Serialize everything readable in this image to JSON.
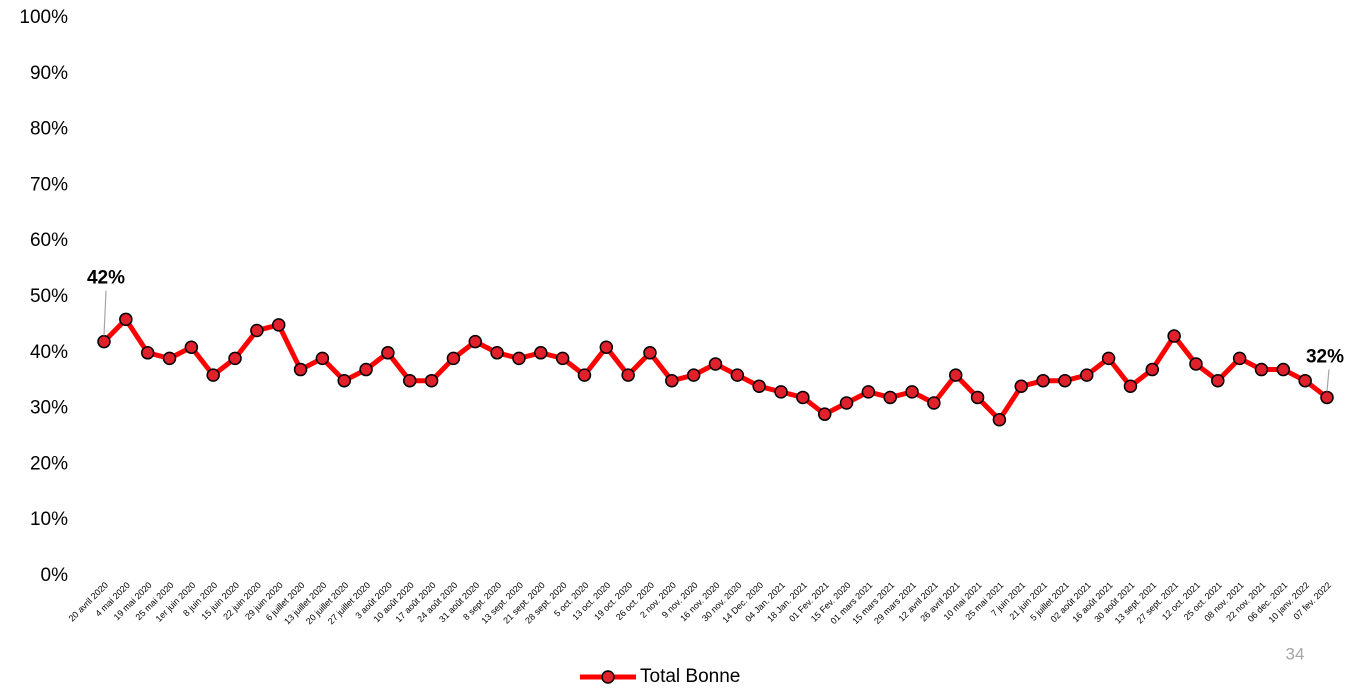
{
  "chart_data": {
    "type": "line",
    "categories": [
      "20 avril 2020",
      "4 mai 2020",
      "19 mai 2020",
      "25 mai 2020",
      "1er juin 2020",
      "8 juin 2020",
      "15 juin 2020",
      "22 juin 2020",
      "29 juin 2020",
      "6 juillet 2020",
      "13 juillet 2020",
      "20 juillet 2020",
      "27 juillet 2020",
      "3 août 2020",
      "10 août 2020",
      "17 août 2020",
      "24 août 2020",
      "31 août 2020",
      "8 sept. 2020",
      "13 sept. 2020",
      "21 sept. 2020",
      "28 sept. 2020",
      "5 oct. 2020",
      "13 oct. 2020",
      "19 oct. 2020",
      "26 oct. 2020",
      "2 nov. 2020",
      "9 nov. 2020",
      "16 nov. 2020",
      "30 nov. 2020",
      "14 Dec. 2020",
      "04 Jan. 2021",
      "18 Jan. 2021",
      "01 Fev. 2021",
      "15 Fev. 2020",
      "01 mars 2021",
      "15 mars 2021",
      "29 mars 2021",
      "12 avril 2021",
      "26 avril 2021",
      "10 mai 2021",
      "25 mai 2021",
      "7 juin 2021",
      "21 juin 2021",
      "5 juillet 2021",
      "02 août 2021",
      "16 août 2021",
      "30 août 2021",
      "13 sept. 2021",
      "27 sept. 2021",
      "12 oct. 2021",
      "25 oct. 2021",
      "08 nov. 2021",
      "22 nov. 2021",
      "06 dec. 2021",
      "10 janv. 2022",
      "07 fev. 2022"
    ],
    "series": [
      {
        "name": "Total Bonne",
        "color": "#ff0000",
        "marker_color": "#e0202a",
        "values": [
          42,
          46,
          40,
          39,
          41,
          36,
          39,
          44,
          45,
          37,
          39,
          35,
          37,
          40,
          35,
          35,
          39,
          42,
          40,
          39,
          40,
          39,
          36,
          41,
          36,
          40,
          35,
          36,
          38,
          36,
          34,
          33,
          32,
          29,
          31,
          33,
          32,
          33,
          31,
          36,
          32,
          28,
          34,
          35,
          35,
          36,
          39,
          34,
          37,
          43,
          38,
          35,
          39,
          37,
          37,
          35,
          32
        ],
        "value_labels": [
          "42%",
          null,
          null,
          null,
          null,
          null,
          null,
          null,
          null,
          null,
          null,
          null,
          null,
          null,
          null,
          null,
          null,
          null,
          null,
          null,
          null,
          null,
          null,
          null,
          null,
          null,
          null,
          null,
          null,
          null,
          null,
          null,
          null,
          null,
          null,
          null,
          null,
          null,
          null,
          null,
          null,
          null,
          null,
          null,
          null,
          null,
          null,
          null,
          null,
          null,
          null,
          null,
          null,
          null,
          null,
          null,
          "32%"
        ]
      }
    ],
    "ylim": [
      0,
      100
    ],
    "yticks": [
      {
        "value": 0,
        "label": "0%"
      },
      {
        "value": 10,
        "label": "10%"
      },
      {
        "value": 20,
        "label": "20%"
      },
      {
        "value": 30,
        "label": "30%"
      },
      {
        "value": 40,
        "label": "40%"
      },
      {
        "value": 50,
        "label": "50%"
      },
      {
        "value": 60,
        "label": "60%"
      },
      {
        "value": 70,
        "label": "70%"
      },
      {
        "value": 80,
        "label": "80%"
      },
      {
        "value": 90,
        "label": "90%"
      },
      {
        "value": 100,
        "label": "100%"
      }
    ],
    "grid": false,
    "legend": "bottom",
    "page_number": "34"
  }
}
